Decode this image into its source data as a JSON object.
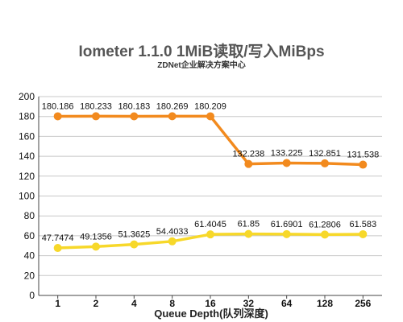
{
  "chart_data": {
    "type": "line",
    "title": "Iometer 1.1.0 1MiB读取/写入MiBps",
    "subtitle": "ZDNet企业解决方案中心",
    "xlabel": "Queue Depth(队列深度)",
    "ylabel": "",
    "categories": [
      "1",
      "2",
      "4",
      "8",
      "16",
      "32",
      "64",
      "128",
      "256"
    ],
    "ylim": [
      0,
      200
    ],
    "yticks": [
      0,
      20,
      40,
      60,
      80,
      100,
      120,
      140,
      160,
      180,
      200
    ],
    "grid": true,
    "legend": "none",
    "series": [
      {
        "color": "#F28A1E",
        "labels": [
          "180.186",
          "180.233",
          "180.183",
          "180.269",
          "180.209",
          "132.238",
          "133.225",
          "132.851",
          "131.538"
        ],
        "values": [
          180.186,
          180.233,
          180.183,
          180.269,
          180.209,
          132.238,
          133.225,
          132.851,
          131.538
        ]
      },
      {
        "color": "#F7D82A",
        "labels": [
          "47.7474",
          "49.1356",
          "51.3625",
          "54.4033",
          "61.4045",
          "61.85",
          "61.6901",
          "61.2806",
          "61.583"
        ],
        "values": [
          47.7474,
          49.1356,
          51.3625,
          54.4033,
          61.4045,
          61.85,
          61.6901,
          61.2806,
          61.583
        ]
      }
    ]
  }
}
